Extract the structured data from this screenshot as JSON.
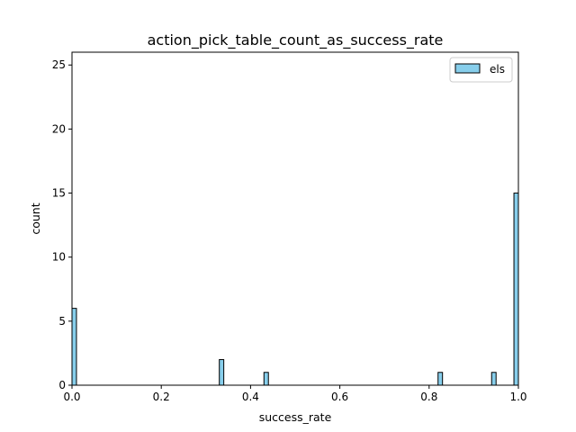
{
  "chart_data": {
    "type": "bar",
    "title": "action_pick_table_count_as_success_rate",
    "xlabel": "success_rate",
    "ylabel": "count",
    "xlim": [
      0,
      1
    ],
    "ylim": [
      0,
      26
    ],
    "bin_width": 0.01,
    "xticks": [
      "0.0",
      "0.2",
      "0.4",
      "0.6",
      "0.8",
      "1.0"
    ],
    "yticks": [
      "0",
      "5",
      "10",
      "15",
      "20",
      "25"
    ],
    "series": [
      {
        "name": "els",
        "color": "#87CEEB",
        "edge_color": "#000000",
        "bins": [
          {
            "x": 0.0,
            "count": 6
          },
          {
            "x": 0.33,
            "count": 2
          },
          {
            "x": 0.43,
            "count": 1
          },
          {
            "x": 0.82,
            "count": 1
          },
          {
            "x": 0.94,
            "count": 1
          },
          {
            "x": 0.99,
            "count": 15
          }
        ]
      }
    ],
    "legend_position": "top-right",
    "grid": false
  }
}
